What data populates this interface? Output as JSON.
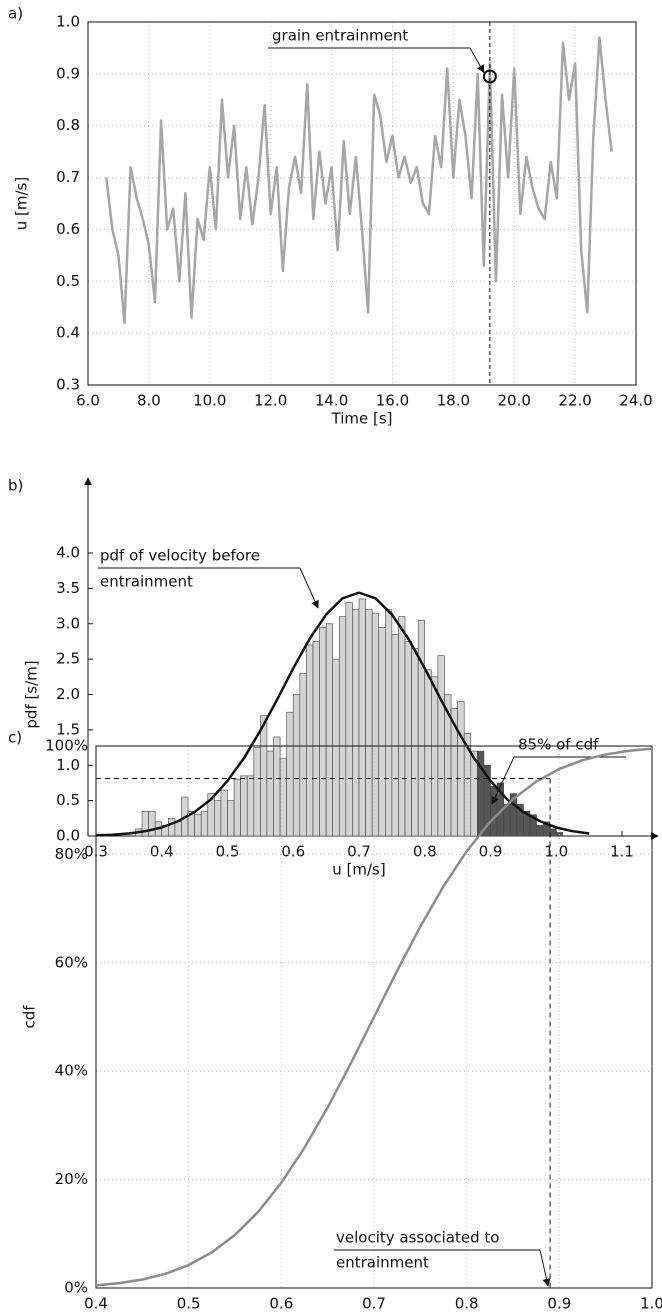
{
  "chart_data": [
    {
      "type": "line",
      "panel_label": "a)",
      "xlabel": "Time [s]",
      "ylabel": "u [m/s]",
      "frame": "box",
      "grid": true,
      "xlim": [
        6,
        24
      ],
      "xticks": [
        {
          "value": 6,
          "label": "6.0"
        },
        {
          "value": 8,
          "label": "8.0"
        },
        {
          "value": 10,
          "label": "10.0"
        },
        {
          "value": 12,
          "label": "12.0"
        },
        {
          "value": 14,
          "label": "14.0"
        },
        {
          "value": 16,
          "label": "16.0"
        },
        {
          "value": 18,
          "label": "18.0"
        },
        {
          "value": 20,
          "label": "20.0"
        },
        {
          "value": 22,
          "label": "22.0"
        },
        {
          "value": 24,
          "label": "24.0"
        }
      ],
      "ylim": [
        0.3,
        1.0
      ],
      "yticks": [
        0.3,
        0.4,
        0.5,
        0.6,
        0.7,
        0.8,
        0.9,
        {
          "value": 1,
          "label": "1.0"
        }
      ],
      "color": "#a6a6a6",
      "x": [
        6.6,
        6.8,
        7.0,
        7.2,
        7.4,
        7.6,
        7.8,
        8.0,
        8.2,
        8.4,
        8.6,
        8.8,
        9.0,
        9.2,
        9.4,
        9.6,
        9.8,
        10.0,
        10.2,
        10.4,
        10.6,
        10.8,
        11.0,
        11.2,
        11.4,
        11.6,
        11.8,
        12.0,
        12.2,
        12.4,
        12.6,
        12.8,
        13.0,
        13.2,
        13.4,
        13.6,
        13.8,
        14.0,
        14.2,
        14.4,
        14.6,
        14.8,
        15.0,
        15.2,
        15.4,
        15.6,
        15.8,
        16.0,
        16.2,
        16.4,
        16.6,
        16.8,
        17.0,
        17.2,
        17.4,
        17.6,
        17.8,
        18.0,
        18.2,
        18.4,
        18.6,
        18.8,
        19.0,
        19.2,
        19.4,
        19.6,
        19.8,
        20.0,
        20.2,
        20.4,
        20.6,
        20.8,
        21.0,
        21.2,
        21.4,
        21.6,
        21.8,
        22.0,
        22.2,
        22.4,
        22.6,
        22.8,
        23.0,
        23.2
      ],
      "values": [
        0.7,
        0.6,
        0.55,
        0.42,
        0.72,
        0.66,
        0.62,
        0.57,
        0.46,
        0.81,
        0.6,
        0.64,
        0.5,
        0.67,
        0.43,
        0.62,
        0.58,
        0.72,
        0.6,
        0.85,
        0.7,
        0.8,
        0.62,
        0.72,
        0.61,
        0.7,
        0.84,
        0.63,
        0.72,
        0.52,
        0.68,
        0.74,
        0.67,
        0.88,
        0.62,
        0.75,
        0.65,
        0.72,
        0.56,
        0.77,
        0.63,
        0.74,
        0.6,
        0.44,
        0.86,
        0.82,
        0.73,
        0.78,
        0.7,
        0.74,
        0.69,
        0.72,
        0.65,
        0.63,
        0.78,
        0.72,
        0.91,
        0.7,
        0.85,
        0.78,
        0.66,
        0.9,
        0.53,
        0.92,
        0.5,
        0.86,
        0.7,
        0.91,
        0.63,
        0.74,
        0.68,
        0.64,
        0.62,
        0.73,
        0.66,
        0.96,
        0.85,
        0.92,
        0.56,
        0.44,
        0.78,
        0.97,
        0.85,
        0.75
      ],
      "annotation": "grain entrainment",
      "marker": {
        "x": 19.2,
        "y": 0.895
      },
      "vline_x": 19.2
    },
    {
      "type": "histogram",
      "panel_label": "b)",
      "xlabel": "u [m/s]",
      "ylabel": "pdf  [s/m]",
      "frame": "arrows",
      "grid": false,
      "xlim": [
        0.3,
        1.1
      ],
      "xticks": [
        0.3,
        0.4,
        0.5,
        0.6,
        0.7,
        0.8,
        0.9,
        {
          "value": 1,
          "label": "1.0"
        },
        1.1
      ],
      "ylim": [
        0,
        4
      ],
      "yticks": [
        {
          "value": 0,
          "label": "0.0"
        },
        0.5,
        {
          "value": 1,
          "label": "1.0"
        },
        1.5,
        {
          "value": 2,
          "label": "2.0"
        },
        2.5,
        {
          "value": 3,
          "label": "3.0"
        },
        3.5,
        {
          "value": 4,
          "label": "4.0"
        }
      ],
      "color": "#d4d4d4",
      "highlight_from": 0.88,
      "highlight_color": "#555555",
      "bins": [
        0.36,
        0.37,
        0.38,
        0.39,
        0.4,
        0.41,
        0.42,
        0.43,
        0.44,
        0.45,
        0.46,
        0.47,
        0.48,
        0.49,
        0.5,
        0.51,
        0.52,
        0.53,
        0.54,
        0.55,
        0.56,
        0.57,
        0.58,
        0.59,
        0.6,
        0.61,
        0.62,
        0.63,
        0.64,
        0.65,
        0.66,
        0.67,
        0.68,
        0.69,
        0.7,
        0.71,
        0.72,
        0.73,
        0.74,
        0.75,
        0.76,
        0.77,
        0.78,
        0.79,
        0.8,
        0.81,
        0.82,
        0.83,
        0.84,
        0.85,
        0.86,
        0.87,
        0.88,
        0.89,
        0.9,
        0.91,
        0.92,
        0.93,
        0.94,
        0.95,
        0.96,
        0.97,
        0.98,
        0.99,
        1.0,
        1.01
      ],
      "values": [
        0.1,
        0.35,
        0.35,
        0.2,
        0.15,
        0.25,
        0.2,
        0.55,
        0.35,
        0.3,
        0.35,
        0.6,
        0.5,
        0.65,
        0.5,
        0.8,
        0.85,
        0.85,
        1.25,
        1.7,
        1.2,
        1.4,
        1.1,
        1.75,
        2.0,
        2.3,
        2.7,
        2.75,
        2.95,
        3.0,
        2.5,
        3.1,
        3.3,
        3.2,
        3.35,
        3.2,
        3.15,
        2.95,
        3.2,
        2.85,
        3.1,
        2.75,
        2.65,
        3.05,
        2.35,
        2.25,
        2.55,
        2.0,
        1.8,
        1.9,
        1.45,
        1.2,
        1.2,
        1.0,
        0.7,
        0.75,
        0.45,
        0.6,
        0.45,
        0.35,
        0.3,
        0.15,
        0.2,
        0.1,
        0.05
      ],
      "curve": {
        "color": "#111111",
        "x": [
          0.3,
          0.325,
          0.35,
          0.375,
          0.4,
          0.425,
          0.45,
          0.475,
          0.5,
          0.525,
          0.55,
          0.575,
          0.6,
          0.625,
          0.65,
          0.675,
          0.7,
          0.725,
          0.75,
          0.775,
          0.8,
          0.825,
          0.85,
          0.875,
          0.9,
          0.925,
          0.95,
          0.975,
          1.0,
          1.025,
          1.05
        ],
        "values": [
          0.009,
          0.018,
          0.036,
          0.068,
          0.12,
          0.21,
          0.34,
          0.52,
          0.78,
          1.1,
          1.49,
          1.92,
          2.37,
          2.79,
          3.13,
          3.36,
          3.44,
          3.36,
          3.13,
          2.79,
          2.37,
          1.92,
          1.49,
          1.1,
          0.78,
          0.52,
          0.34,
          0.21,
          0.12,
          0.068,
          0.036
        ]
      },
      "annotation_pdf": [
        "pdf of velocity before",
        "entrainment"
      ],
      "annotation_cdf": "85% of cdf"
    },
    {
      "type": "line",
      "panel_label": "c)",
      "xlabel": "u [m/s]",
      "ylabel": "cdf",
      "frame": "box",
      "grid": true,
      "xlim": [
        0.4,
        1.0
      ],
      "xticks": [
        0.4,
        0.5,
        0.6,
        0.7,
        0.8,
        0.9,
        {
          "value": 1,
          "label": "1.0"
        }
      ],
      "ylim": [
        0,
        100
      ],
      "yticks": [
        {
          "value": 0,
          "label": "0%"
        },
        {
          "value": 20,
          "label": "20%"
        },
        {
          "value": 40,
          "label": "40%"
        },
        {
          "value": 60,
          "label": "60%"
        },
        {
          "value": 80,
          "label": "80%"
        },
        {
          "value": 100,
          "label": "100%"
        }
      ],
      "color": "#8c8c8c",
      "x": [
        0.4,
        0.425,
        0.45,
        0.475,
        0.5,
        0.525,
        0.55,
        0.575,
        0.6,
        0.625,
        0.65,
        0.675,
        0.7,
        0.725,
        0.75,
        0.775,
        0.8,
        0.825,
        0.85,
        0.875,
        0.9,
        0.925,
        0.95,
        0.975,
        1.0
      ],
      "values": [
        0.48,
        0.89,
        1.56,
        2.62,
        4.24,
        6.57,
        9.8,
        14.05,
        19.43,
        25.88,
        33.32,
        41.45,
        50,
        58.55,
        66.68,
        74.12,
        80.57,
        85.95,
        90.2,
        93.43,
        95.76,
        97.38,
        98.44,
        99.11,
        99.52
      ],
      "annotation": [
        "velocity associated to",
        "entrainment"
      ],
      "marker": {
        "x": 0.89,
        "y": 94
      }
    }
  ]
}
